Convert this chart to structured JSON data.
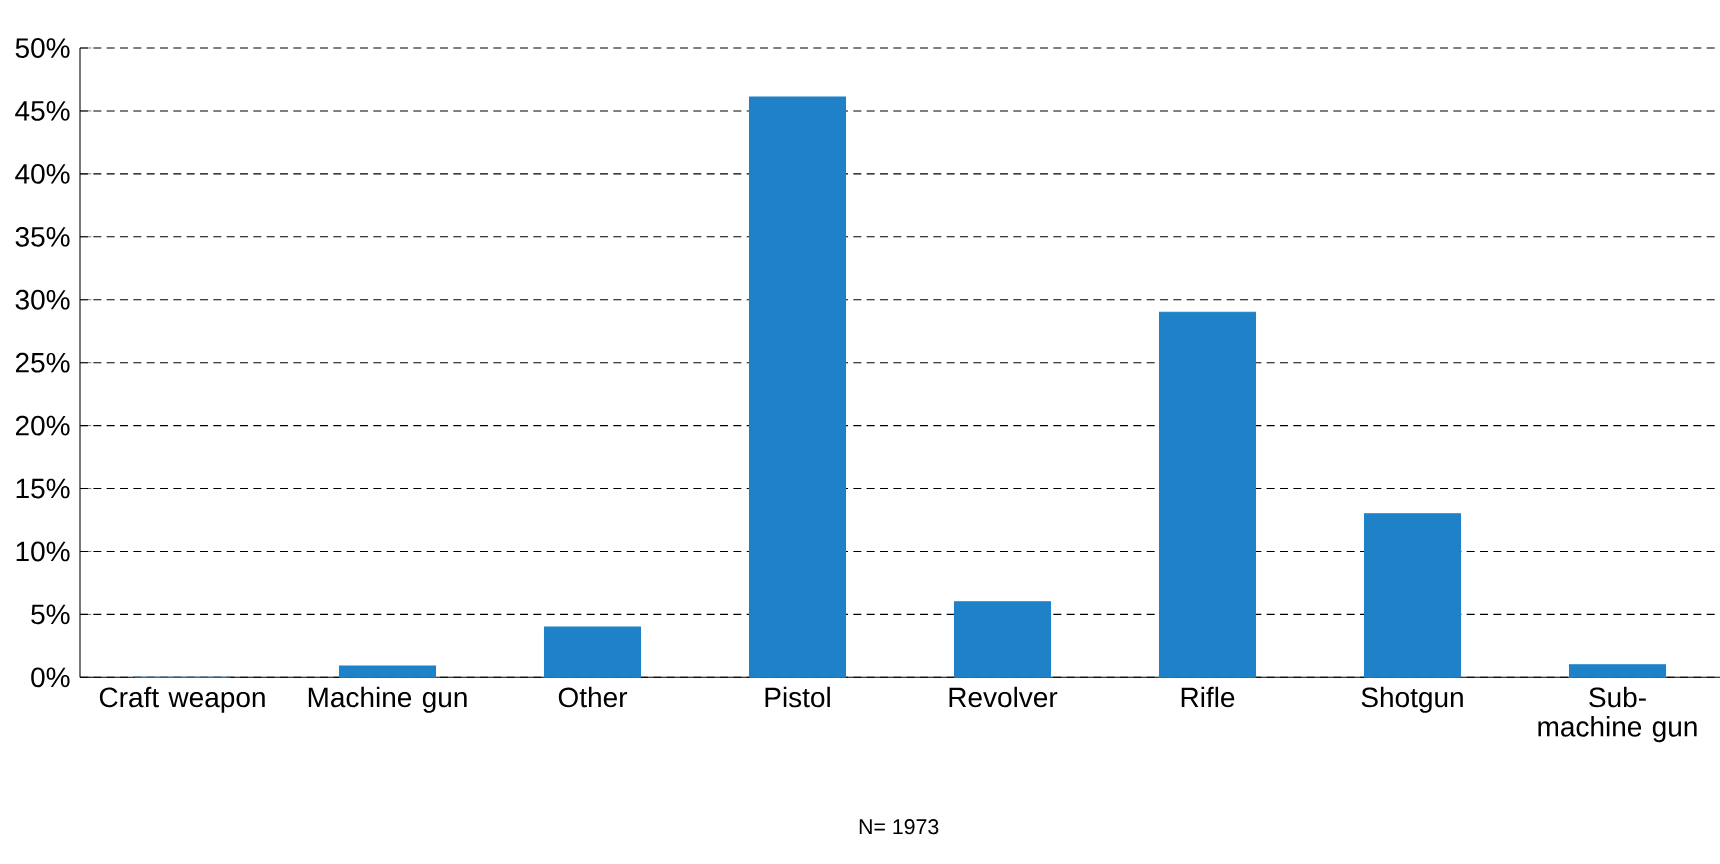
{
  "chart_data": {
    "type": "bar",
    "categories": [
      "Craft weapon",
      "Machine gun",
      "Other",
      "Pistol",
      "Revolver",
      "Rifle",
      "Shotgun",
      "Sub-machine gun"
    ],
    "values": [
      0,
      0.9,
      4,
      46.1,
      6,
      29,
      13,
      1
    ],
    "color": "#1f82c8",
    "ylim": [
      0,
      50
    ],
    "yticks": [
      {
        "value": 0,
        "label": "0%"
      },
      {
        "value": 5,
        "label": "5%"
      },
      {
        "value": 10,
        "label": "10%"
      },
      {
        "value": 15,
        "label": "15%"
      },
      {
        "value": 20,
        "label": "20%"
      },
      {
        "value": 25,
        "label": "25%"
      },
      {
        "value": 30,
        "label": "30%"
      },
      {
        "value": 35,
        "label": "35%"
      },
      {
        "value": 40,
        "label": "40%"
      },
      {
        "value": 45,
        "label": "45%"
      },
      {
        "value": 50,
        "label": "50%"
      }
    ],
    "grid": "y",
    "annotations": [
      "N= 1973"
    ]
  }
}
